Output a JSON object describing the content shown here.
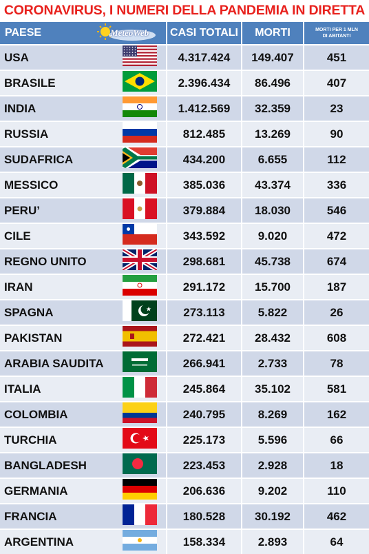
{
  "title": "CORONAVIRUS, I NUMERI DELLA PANDEMIA IN DIRETTA",
  "logo_text": "MeteoWeb",
  "headers": {
    "country": "PAESE",
    "cases": "CASI TOTALI",
    "deaths": "MORTI",
    "per_million_line1": "MORTI PER 1 MLN",
    "per_million_line2": "DI ABITANTI"
  },
  "rows": [
    {
      "country": "USA",
      "flag": "usa-flag",
      "cases": "4.317.424",
      "deaths": "149.407",
      "per_million": "451"
    },
    {
      "country": "BRASILE",
      "flag": "brazil-flag",
      "cases": "2.396.434",
      "deaths": "86.496",
      "per_million": "407"
    },
    {
      "country": "INDIA",
      "flag": "india-flag",
      "cases": "1.412.569",
      "deaths": "32.359",
      "per_million": "23"
    },
    {
      "country": "RUSSIA",
      "flag": "russia-flag",
      "cases": "812.485",
      "deaths": "13.269",
      "per_million": "90"
    },
    {
      "country": "SUDAFRICA",
      "flag": "south-africa-flag",
      "cases": "434.200",
      "deaths": "6.655",
      "per_million": "112"
    },
    {
      "country": "MESSICO",
      "flag": "mexico-flag",
      "cases": "385.036",
      "deaths": "43.374",
      "per_million": "336"
    },
    {
      "country": "PERU’",
      "flag": "peru-flag",
      "cases": "379.884",
      "deaths": "18.030",
      "per_million": "546"
    },
    {
      "country": "CILE",
      "flag": "chile-flag",
      "cases": "343.592",
      "deaths": "9.020",
      "per_million": "472"
    },
    {
      "country": "REGNO UNITO",
      "flag": "uk-flag",
      "cases": "298.681",
      "deaths": "45.738",
      "per_million": "674"
    },
    {
      "country": "IRAN",
      "flag": "iran-flag",
      "cases": "291.172",
      "deaths": "15.700",
      "per_million": "187"
    },
    {
      "country": "SPAGNA",
      "flag": "pakistan-flag",
      "cases": "273.113",
      "deaths": "5.822",
      "per_million": "26"
    },
    {
      "country": "PAKISTAN",
      "flag": "spain-flag",
      "cases": "272.421",
      "deaths": "28.432",
      "per_million": "608"
    },
    {
      "country": "ARABIA SAUDITA",
      "flag": "saudi-flag",
      "cases": "266.941",
      "deaths": "2.733",
      "per_million": "78"
    },
    {
      "country": "ITALIA",
      "flag": "italy-flag",
      "cases": "245.864",
      "deaths": "35.102",
      "per_million": "581"
    },
    {
      "country": "COLOMBIA",
      "flag": "colombia-flag",
      "cases": "240.795",
      "deaths": "8.269",
      "per_million": "162"
    },
    {
      "country": "TURCHIA",
      "flag": "turkey-flag",
      "cases": "225.173",
      "deaths": "5.596",
      "per_million": "66"
    },
    {
      "country": "BANGLADESH",
      "flag": "bangladesh-flag",
      "cases": "223.453",
      "deaths": "2.928",
      "per_million": "18"
    },
    {
      "country": "GERMANIA",
      "flag": "germany-flag",
      "cases": "206.636",
      "deaths": "9.202",
      "per_million": "110"
    },
    {
      "country": "FRANCIA",
      "flag": "france-flag",
      "cases": "180.528",
      "deaths": "30.192",
      "per_million": "462"
    },
    {
      "country": "ARGENTINA",
      "flag": "argentina-flag",
      "cases": "158.334",
      "deaths": "2.893",
      "per_million": "64"
    }
  ],
  "colors": {
    "title": "#e8211d",
    "header_bg": "#4f81bd",
    "row_odd": "#d0d8e8",
    "row_even": "#e9edf4"
  }
}
